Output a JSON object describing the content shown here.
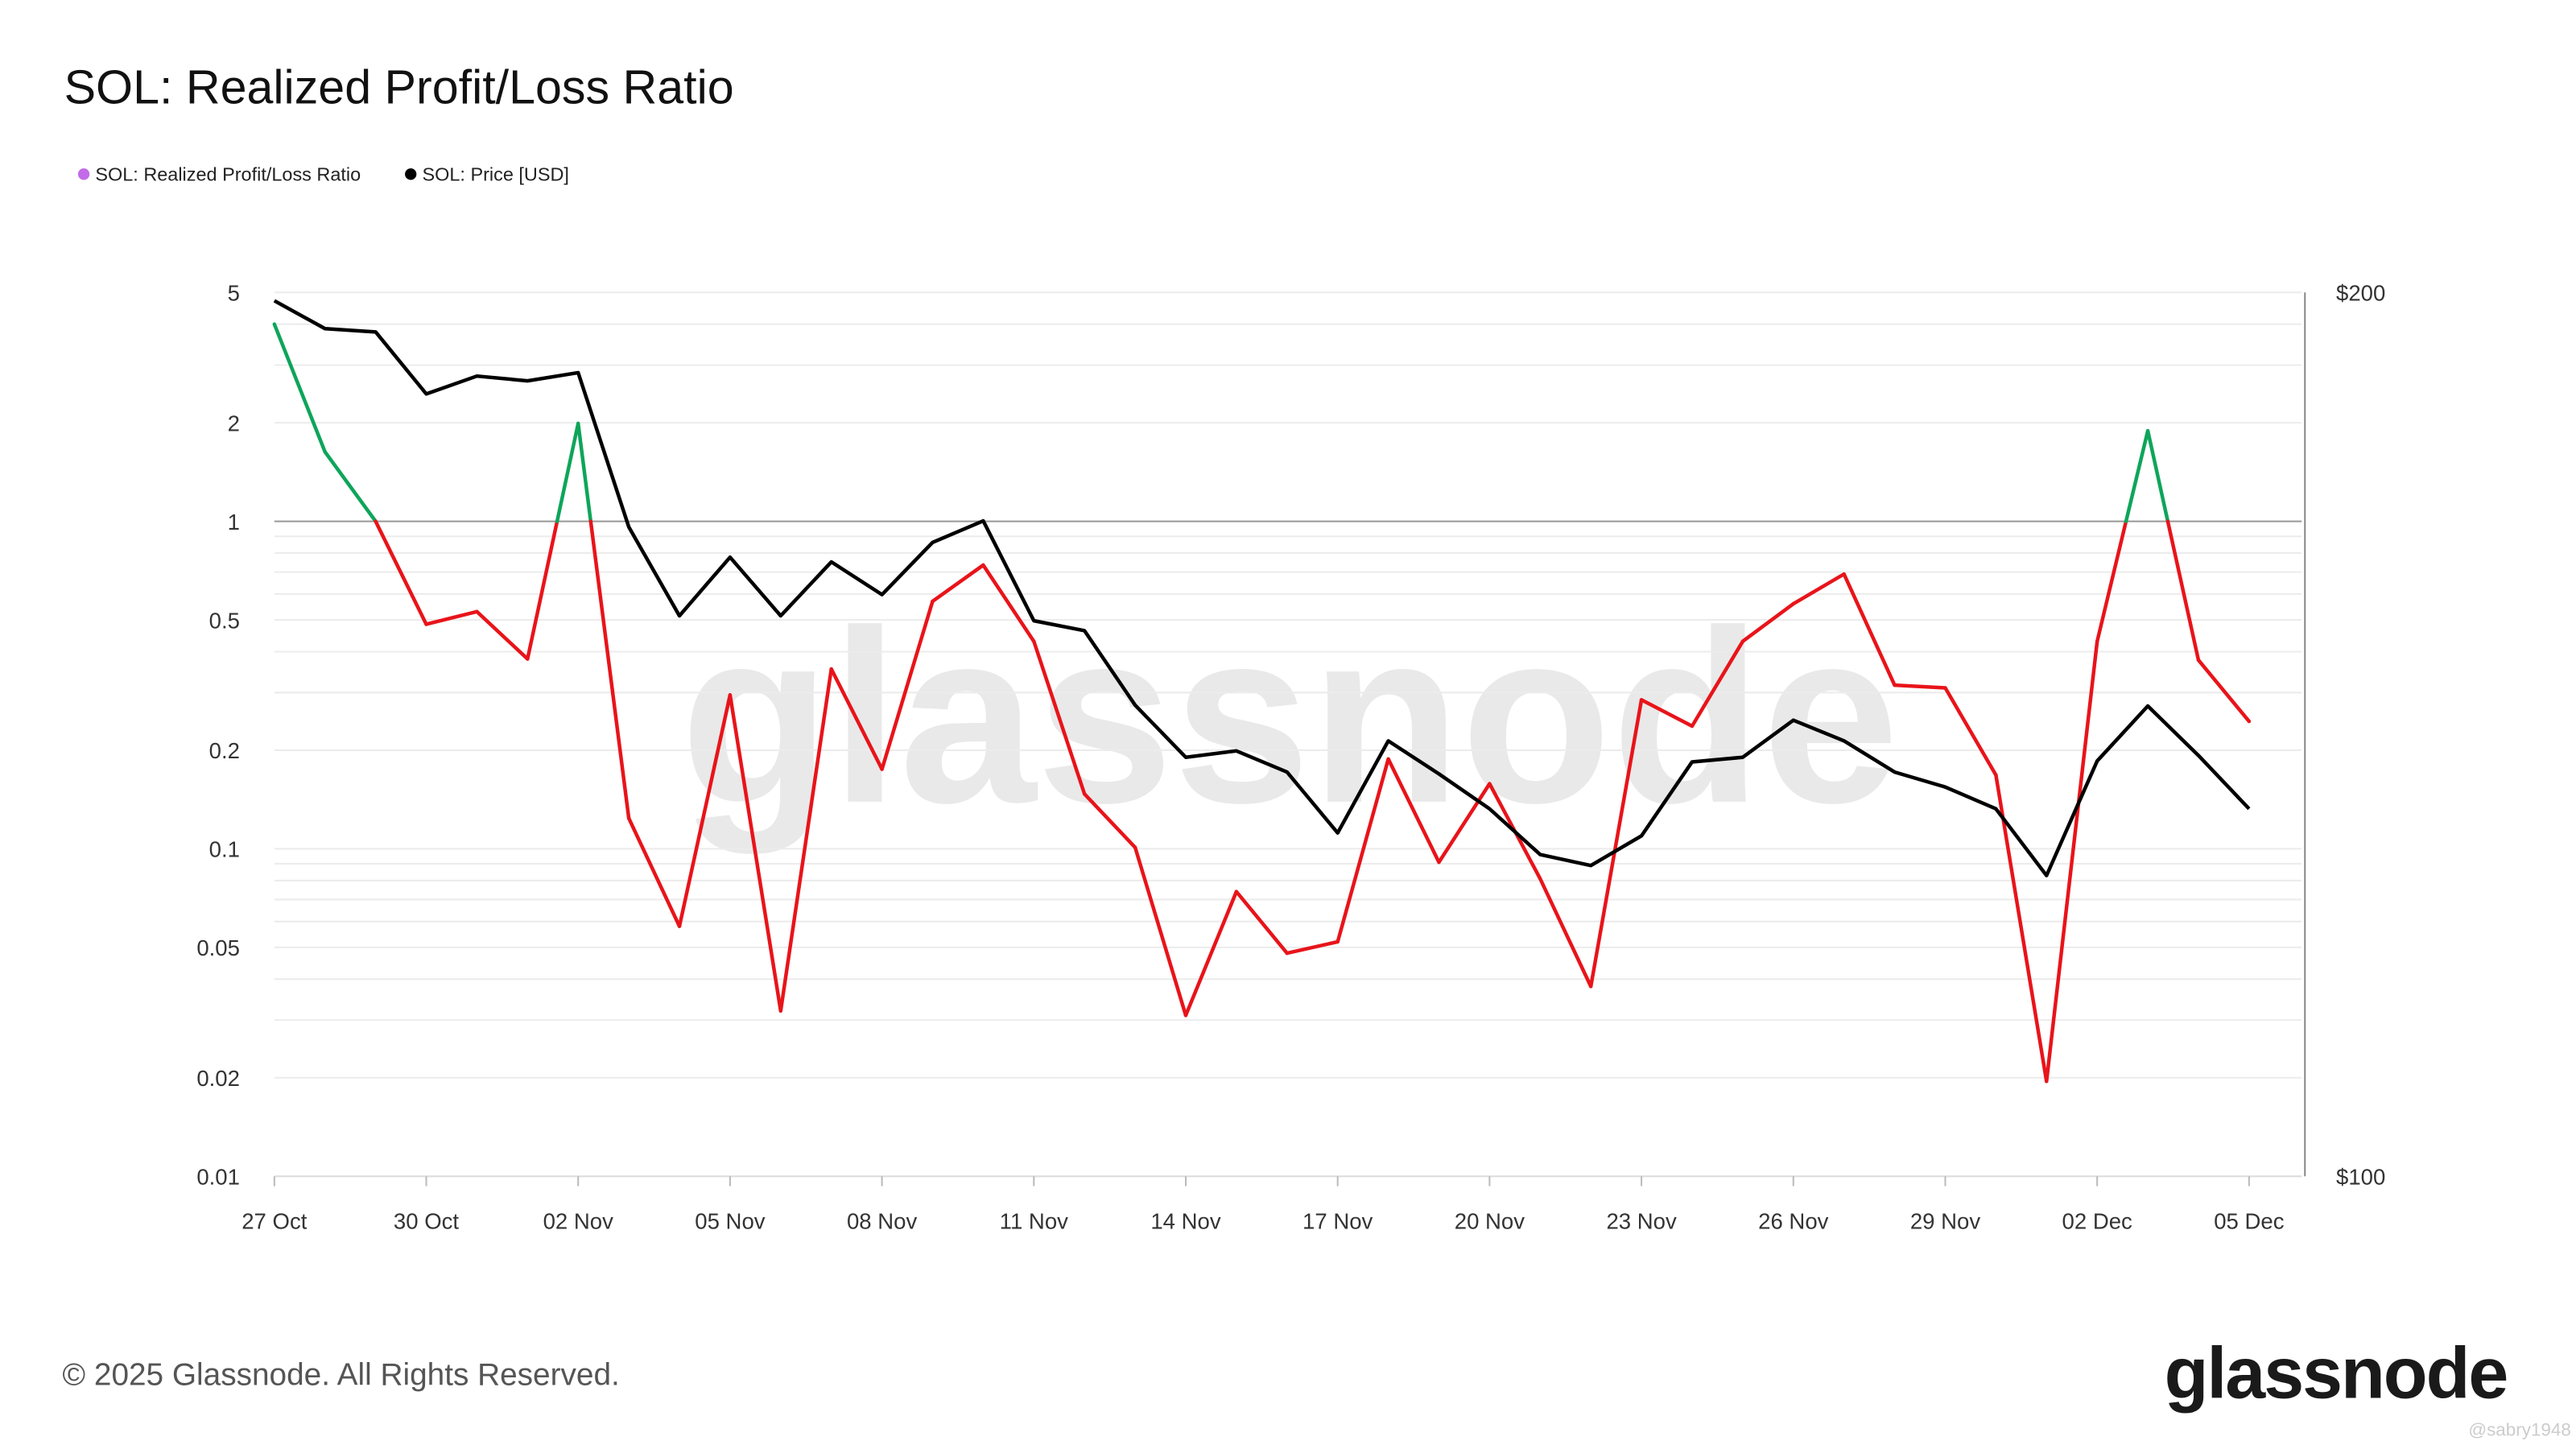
{
  "chart_data": {
    "type": "line",
    "title": "SOL: Realized Profit/Loss Ratio",
    "legend_position": "top-left",
    "x_tick_labels": [
      "27 Oct",
      "30 Oct",
      "02 Nov",
      "05 Nov",
      "08 Nov",
      "11 Nov",
      "14 Nov",
      "17 Nov",
      "20 Nov",
      "23 Nov",
      "26 Nov",
      "29 Nov",
      "02 Dec",
      "05 Dec"
    ],
    "x_start": "27 Oct",
    "x_end": "05 Dec",
    "y_left": {
      "scale": "log",
      "range": [
        0.01,
        5
      ],
      "tick_labels": [
        "5",
        "2",
        "1",
        "0.5",
        "0.2",
        "0.1",
        "0.05",
        "0.02",
        "0.01"
      ],
      "ticks": [
        5,
        2,
        1,
        0.5,
        0.2,
        0.1,
        0.05,
        0.02,
        0.01
      ],
      "reference_line": 1
    },
    "y_right": {
      "scale": "log",
      "range": [
        100,
        200
      ],
      "tick_labels": [
        "$200",
        "$100"
      ],
      "ticks": [
        200,
        100
      ]
    },
    "grid": true,
    "series": [
      {
        "name": "SOL: Realized Profit/Loss Ratio",
        "axis": "left",
        "legend_color": "#c36be8",
        "color_above": "#0ea55a",
        "color_below": "#e8141a",
        "threshold": 1,
        "values": [
          4.0,
          1.63,
          1.0,
          0.485,
          0.53,
          0.38,
          1.99,
          0.124,
          0.058,
          0.295,
          0.032,
          0.354,
          0.175,
          0.57,
          0.735,
          0.43,
          0.147,
          0.101,
          0.031,
          0.074,
          0.048,
          0.052,
          0.188,
          0.091,
          0.158,
          0.081,
          0.038,
          0.285,
          0.237,
          0.43,
          0.56,
          0.69,
          0.316,
          0.31,
          0.168,
          0.0195,
          0.43,
          1.89,
          0.377,
          0.245
        ]
      },
      {
        "name": "SOL: Price [USD]",
        "axis": "right",
        "color": "#000000",
        "values": [
          198.7,
          194.4,
          193.9,
          184.7,
          187.3,
          186.6,
          187.8,
          166.4,
          155.2,
          162.5,
          155.2,
          161.9,
          157.8,
          164.4,
          167.2,
          154.6,
          153.4,
          144.7,
          138.9,
          139.6,
          137.3,
          130.9,
          140.7,
          137.1,
          133.4,
          128.7,
          127.6,
          130.6,
          138.4,
          138.9,
          143.0,
          140.7,
          137.3,
          135.7,
          133.4,
          126.6,
          138.5,
          144.6,
          139.1,
          133.4
        ]
      }
    ]
  },
  "watermark": "glassnode",
  "footer": {
    "copyright": "© 2025 Glassnode. All Rights Reserved.",
    "logo": "glassnode",
    "credit": "@sabry1948"
  }
}
